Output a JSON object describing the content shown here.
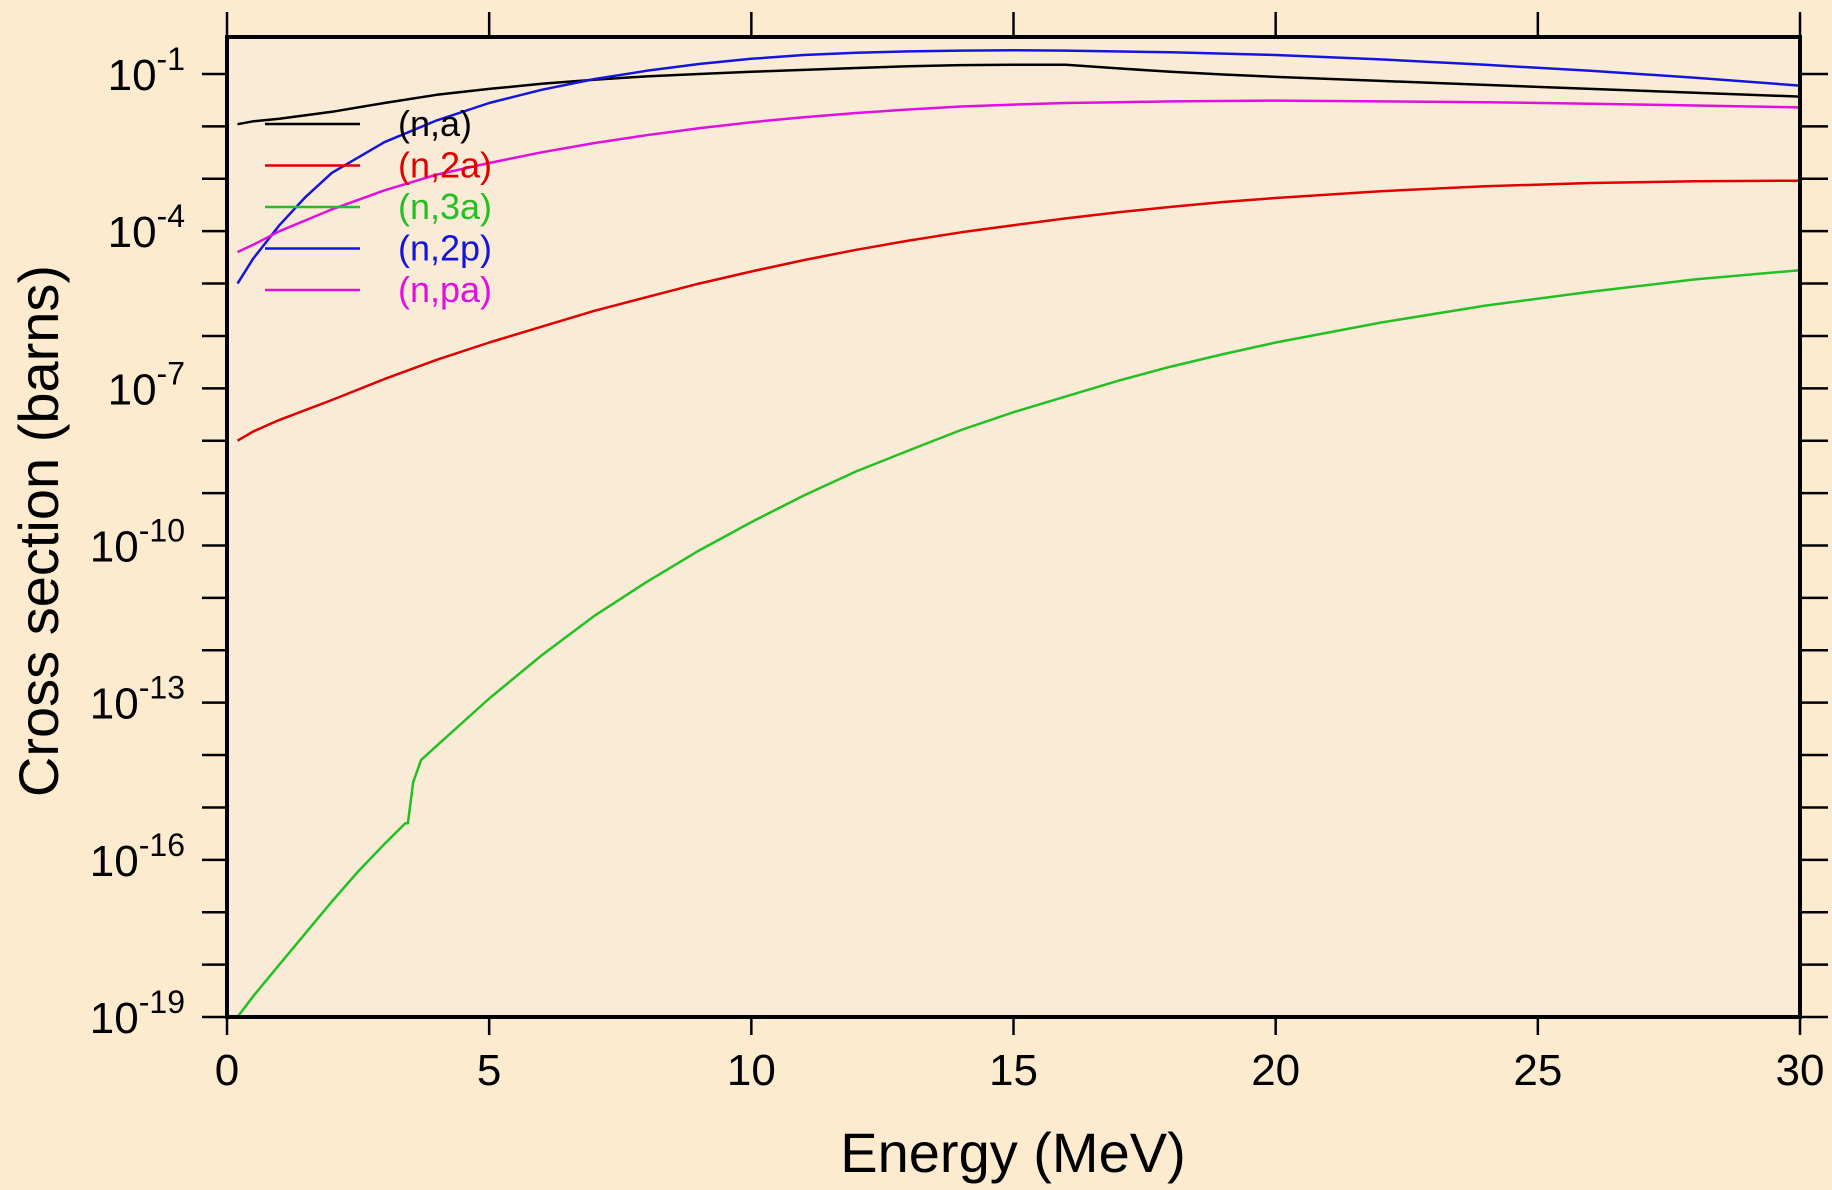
{
  "colors": {
    "page_background": "#fdebd0",
    "plot_background": "#faebd7",
    "frame": "#000000"
  },
  "chart_data": {
    "type": "line",
    "title": "",
    "xlabel": "Energy (MeV)",
    "ylabel": "Cross section (barns)",
    "xlim": [
      0,
      30
    ],
    "ylim": [
      1e-19,
      1
    ],
    "yscale": "log",
    "grid": false,
    "legend_position": "top-left",
    "x_ticks": [
      0,
      5,
      10,
      15,
      20,
      25,
      30
    ],
    "x_tick_labels": [
      "0",
      "5",
      "10",
      "15",
      "20",
      "25",
      "30"
    ],
    "y_ticks": [
      {
        "base": "10",
        "exp": "-1",
        "value": 0.1
      },
      {
        "base": "10",
        "exp": "-4",
        "value": 0.0001
      },
      {
        "base": "10",
        "exp": "-7",
        "value": 1e-07
      },
      {
        "base": "10",
        "exp": "-10",
        "value": 1e-10
      },
      {
        "base": "10",
        "exp": "-13",
        "value": 1e-13
      },
      {
        "base": "10",
        "exp": "-16",
        "value": 1e-16
      },
      {
        "base": "10",
        "exp": "-19",
        "value": 1e-19
      }
    ],
    "series": [
      {
        "name": "(n,a)",
        "color": "#000000",
        "x": [
          0.2,
          0.5,
          1,
          2,
          3,
          4,
          5,
          6,
          7,
          8,
          9,
          10,
          11,
          12,
          13,
          14,
          15,
          16,
          17,
          18,
          19,
          20,
          22,
          24,
          26,
          28,
          30
        ],
        "y": [
          0.011,
          0.0125,
          0.014,
          0.019,
          0.028,
          0.04,
          0.052,
          0.065,
          0.078,
          0.09,
          0.1,
          0.11,
          0.12,
          0.13,
          0.14,
          0.148,
          0.15,
          0.15,
          0.128,
          0.11,
          0.098,
          0.088,
          0.074,
          0.062,
          0.052,
          0.044,
          0.037
        ]
      },
      {
        "name": "(n,2a)",
        "color": "#e00000",
        "x": [
          0.2,
          0.5,
          1,
          2,
          3,
          4,
          5,
          6,
          7,
          8,
          9,
          10,
          11,
          12,
          13,
          14,
          15,
          16,
          17,
          18,
          19,
          20,
          22,
          24,
          26,
          28,
          30
        ],
        "y": [
          1e-08,
          1.5e-08,
          2.5e-08,
          6e-08,
          1.5e-07,
          3.5e-07,
          7.5e-07,
          1.5e-06,
          3e-06,
          5.5e-06,
          1e-05,
          1.7e-05,
          2.8e-05,
          4.4e-05,
          6.6e-05,
          9.5e-05,
          0.00013,
          0.000175,
          0.00023,
          0.00029,
          0.00036,
          0.00043,
          0.00058,
          0.00072,
          0.00083,
          0.0009,
          0.00092
        ]
      },
      {
        "name": "(n,3a)",
        "color": "#22c022",
        "x": [
          0.2,
          0.5,
          1,
          1.5,
          2,
          2.5,
          3,
          3.4,
          3.45,
          3.55,
          3.7,
          4,
          5,
          6,
          7,
          8,
          9,
          10,
          11,
          12,
          13,
          14,
          15,
          16,
          17,
          18,
          19,
          20,
          22,
          24,
          26,
          28,
          30
        ],
        "y": [
          1e-19,
          2.5e-19,
          1e-18,
          4e-18,
          1.6e-17,
          6e-17,
          2e-16,
          5e-16,
          5e-16,
          3e-15,
          8e-15,
          1.5e-14,
          1.2e-13,
          8e-13,
          4.5e-12,
          2e-11,
          8e-11,
          2.8e-10,
          9e-10,
          2.6e-09,
          6.5e-09,
          1.6e-08,
          3.5e-08,
          7e-08,
          1.4e-07,
          2.6e-07,
          4.5e-07,
          7.5e-07,
          1.8e-06,
          3.8e-06,
          7e-06,
          1.2e-05,
          1.8e-05
        ]
      },
      {
        "name": "(n,2p)",
        "color": "#1414e0",
        "x": [
          0.2,
          0.5,
          1,
          1.5,
          2,
          3,
          4,
          5,
          6,
          7,
          8,
          9,
          10,
          11,
          12,
          13,
          14,
          15,
          16,
          18,
          20,
          22,
          24,
          26,
          28,
          30
        ],
        "y": [
          1e-05,
          3e-05,
          0.00013,
          0.00045,
          0.0013,
          0.005,
          0.013,
          0.028,
          0.05,
          0.08,
          0.115,
          0.155,
          0.195,
          0.23,
          0.255,
          0.27,
          0.28,
          0.285,
          0.28,
          0.26,
          0.23,
          0.19,
          0.15,
          0.115,
          0.085,
          0.06
        ]
      },
      {
        "name": "(n,pa)",
        "color": "#e010e0",
        "x": [
          0.2,
          0.5,
          1,
          2,
          3,
          4,
          5,
          6,
          7,
          8,
          9,
          10,
          11,
          12,
          13,
          14,
          15,
          16,
          17,
          18,
          20,
          22,
          24,
          26,
          28,
          30
        ],
        "y": [
          4e-05,
          5.5e-05,
          0.0001,
          0.00026,
          0.0006,
          0.0012,
          0.002,
          0.0032,
          0.0048,
          0.0068,
          0.0092,
          0.012,
          0.015,
          0.018,
          0.021,
          0.024,
          0.026,
          0.028,
          0.029,
          0.03,
          0.031,
          0.03,
          0.029,
          0.027,
          0.025,
          0.023
        ]
      }
    ]
  }
}
